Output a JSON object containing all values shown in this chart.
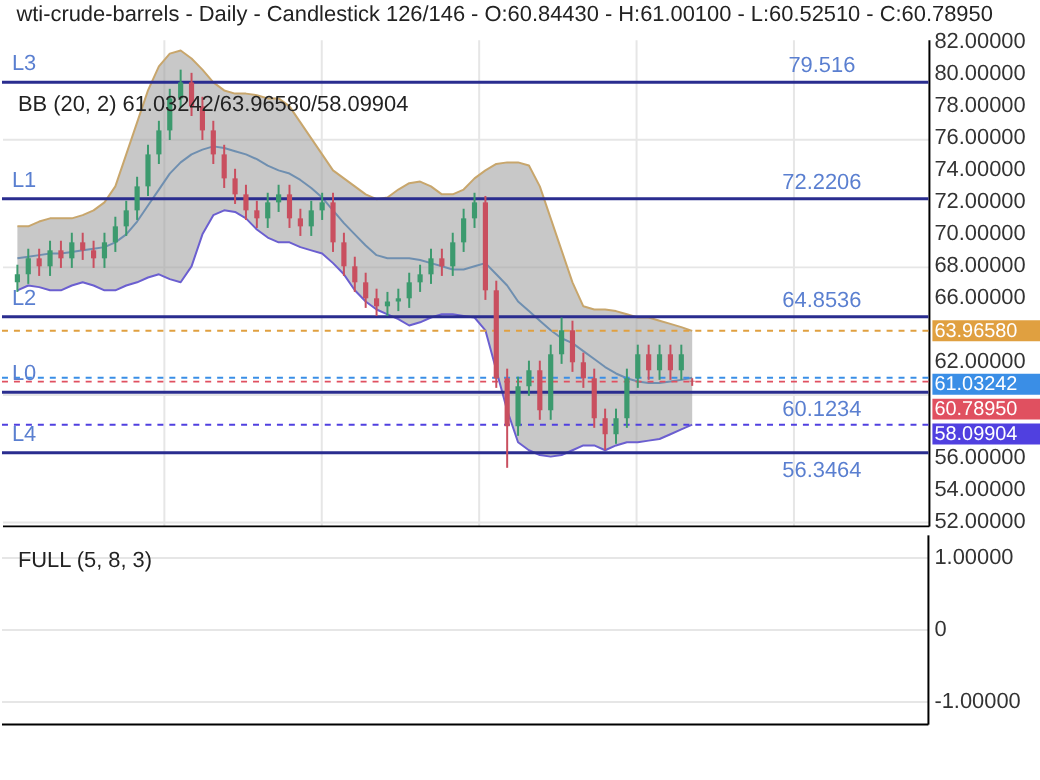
{
  "chart_data": [
    {
      "type": "candlestick",
      "title": "wti-crude-barrels - Daily - Candlestick    126/146 - O:60.84430 - H:61.00100 - L:60.52510 - C:60.78950",
      "subtitle": "BB (20, 2)   61.03242/63.96580/58.09904",
      "categories": [
        null,
        null,
        null,
        null,
        null,
        null,
        null,
        null,
        null,
        null,
        null,
        null,
        null,
        null,
        null,
        null,
        null,
        null,
        null,
        null,
        null,
        null,
        null,
        null,
        null,
        null,
        null,
        null,
        null,
        null,
        null,
        null,
        null,
        null,
        null,
        null,
        null,
        null,
        null,
        null,
        null,
        null,
        null,
        null,
        null,
        null,
        null,
        null,
        null,
        null,
        null,
        null,
        null,
        null,
        null,
        null,
        null,
        null,
        null,
        null,
        null,
        null,
        null
      ],
      "ohlc": [
        [
          67.0,
          68.1,
          66.4,
          67.5
        ],
        [
          67.5,
          69.1,
          66.9,
          68.5
        ],
        [
          68.5,
          69.1,
          67.4,
          68.0
        ],
        [
          68.0,
          69.6,
          67.4,
          69.0
        ],
        [
          69.0,
          69.6,
          67.9,
          68.5
        ],
        [
          68.5,
          70.1,
          67.9,
          69.5
        ],
        [
          69.5,
          70.1,
          68.4,
          69.0
        ],
        [
          69.0,
          69.6,
          67.9,
          68.5
        ],
        [
          68.5,
          70.1,
          67.9,
          69.5
        ],
        [
          69.5,
          71.1,
          68.9,
          70.5
        ],
        [
          70.5,
          72.1,
          69.9,
          71.5
        ],
        [
          71.5,
          73.6,
          70.9,
          73.0
        ],
        [
          73.0,
          75.6,
          72.4,
          75.0
        ],
        [
          75.0,
          77.1,
          74.4,
          76.5
        ],
        [
          76.5,
          79.1,
          75.9,
          78.5
        ],
        [
          78.5,
          80.3,
          77.9,
          79.5
        ],
        [
          79.5,
          80.1,
          77.4,
          78.0
        ],
        [
          78.0,
          78.6,
          75.9,
          76.5
        ],
        [
          76.5,
          77.1,
          74.4,
          75.0
        ],
        [
          75.0,
          75.6,
          72.9,
          73.5
        ],
        [
          73.5,
          74.1,
          71.9,
          72.5
        ],
        [
          72.5,
          73.1,
          70.9,
          71.5
        ],
        [
          71.5,
          72.1,
          70.4,
          71.0
        ],
        [
          71.0,
          72.6,
          70.4,
          72.0
        ],
        [
          72.0,
          73.1,
          71.4,
          72.5
        ],
        [
          72.5,
          73.1,
          70.4,
          71.0
        ],
        [
          71.0,
          71.6,
          69.9,
          70.5
        ],
        [
          70.5,
          72.1,
          69.9,
          71.5
        ],
        [
          71.5,
          72.6,
          70.9,
          72.0
        ],
        [
          72.0,
          72.6,
          68.9,
          69.5
        ],
        [
          69.5,
          70.1,
          67.4,
          68.0
        ],
        [
          68.0,
          68.6,
          66.4,
          67.0
        ],
        [
          67.0,
          67.6,
          65.4,
          66.0
        ],
        [
          66.0,
          66.6,
          64.9,
          65.5
        ],
        [
          65.5,
          66.4,
          64.9,
          65.8
        ],
        [
          65.8,
          66.6,
          65.2,
          66.0
        ],
        [
          66.0,
          67.6,
          65.4,
          67.0
        ],
        [
          67.0,
          68.1,
          66.4,
          67.5
        ],
        [
          67.5,
          69.1,
          66.9,
          68.5
        ],
        [
          68.5,
          69.1,
          67.4,
          68.0
        ],
        [
          68.0,
          70.1,
          67.4,
          69.5
        ],
        [
          69.5,
          71.6,
          68.9,
          71.0
        ],
        [
          71.0,
          72.6,
          70.4,
          72.0
        ],
        [
          72.0,
          72.4,
          65.9,
          66.5
        ],
        [
          66.5,
          67.1,
          60.4,
          61.0
        ],
        [
          61.0,
          61.6,
          55.4,
          58.0
        ],
        [
          58.0,
          61.1,
          57.4,
          60.5
        ],
        [
          60.5,
          62.1,
          59.9,
          61.5
        ],
        [
          61.5,
          62.1,
          58.4,
          59.0
        ],
        [
          59.0,
          63.1,
          58.4,
          62.5
        ],
        [
          62.5,
          64.8,
          61.9,
          64.0
        ],
        [
          64.0,
          64.6,
          61.4,
          62.0
        ],
        [
          62.0,
          62.6,
          60.4,
          61.0
        ],
        [
          61.0,
          61.6,
          57.9,
          58.5
        ],
        [
          58.5,
          59.1,
          56.5,
          57.5
        ],
        [
          57.5,
          59.1,
          56.9,
          58.5
        ],
        [
          58.5,
          61.6,
          57.9,
          61.0
        ],
        [
          61.0,
          63.1,
          60.4,
          62.5
        ],
        [
          62.5,
          63.1,
          60.9,
          61.5
        ],
        [
          61.5,
          63.1,
          60.9,
          62.5
        ],
        [
          62.5,
          63.1,
          60.9,
          61.5
        ],
        [
          61.5,
          63.1,
          60.9,
          62.5
        ],
        [
          60.8443,
          61.001,
          60.5251,
          60.7895
        ]
      ],
      "colors": [
        "#3c9a6e",
        "#3c9a6e",
        "#c94f5f",
        "#3c9a6e",
        "#c94f5f",
        "#3c9a6e",
        "#c94f5f",
        "#c94f5f",
        "#3c9a6e",
        "#3c9a6e",
        "#3c9a6e",
        "#3c9a6e",
        "#3c9a6e",
        "#3c9a6e",
        "#3c9a6e",
        "#3c9a6e",
        "#c94f5f",
        "#c94f5f",
        "#c94f5f",
        "#c94f5f",
        "#c94f5f",
        "#c94f5f",
        "#c94f5f",
        "#3c9a6e",
        "#3c9a6e",
        "#c94f5f",
        "#c94f5f",
        "#3c9a6e",
        "#3c9a6e",
        "#c94f5f",
        "#c94f5f",
        "#c94f5f",
        "#c94f5f",
        "#c94f5f",
        "#3c9a6e",
        "#3c9a6e",
        "#3c9a6e",
        "#3c9a6e",
        "#3c9a6e",
        "#c94f5f",
        "#3c9a6e",
        "#3c9a6e",
        "#3c9a6e",
        "#c94f5f",
        "#c94f5f",
        "#c94f5f",
        "#3c9a6e",
        "#3c9a6e",
        "#c94f5f",
        "#3c9a6e",
        "#3c9a6e",
        "#c94f5f",
        "#c94f5f",
        "#c94f5f",
        "#c94f5f",
        "#3c9a6e",
        "#3c9a6e",
        "#3c9a6e",
        "#c94f5f",
        "#3c9a6e",
        "#c94f5f",
        "#3c9a6e",
        "#c94f5f"
      ],
      "series": [
        {
          "type": "line",
          "color": "#c8a66c",
          "values": [
            70.5,
            70.5,
            70.8,
            71,
            71,
            71,
            71.2,
            71.5,
            72,
            73,
            75,
            77,
            79,
            80.5,
            81.3,
            81.5,
            81,
            80.3,
            79.5,
            79,
            78.8,
            78.8,
            78.7,
            78.5,
            78.5,
            78,
            77,
            76,
            75,
            74,
            73.5,
            73,
            72.5,
            72.2,
            72.3,
            72.8,
            73.2,
            73.3,
            73,
            72.5,
            72.5,
            72.8,
            73.5,
            74,
            74.4,
            74.5,
            74.5,
            74.3,
            73,
            71,
            69,
            67,
            65.5,
            65.3,
            65.3,
            65.2,
            65,
            64.8,
            64.8,
            64.6,
            64.4,
            64.2,
            63.9658
          ]
        },
        {
          "type": "line",
          "color": "#6f8fb0",
          "upper": [
            70.5,
            70.5,
            70.8,
            71,
            71,
            71,
            71.2,
            71.5,
            72,
            73,
            75,
            77,
            79,
            80.5,
            81.3,
            81.5,
            81,
            80.3,
            79.5,
            79,
            78.8,
            78.8,
            78.7,
            78.5,
            78.5,
            78,
            77,
            76,
            75,
            74,
            73.5,
            73,
            72.5,
            72.2,
            72.3,
            72.8,
            73.2,
            73.3,
            73,
            72.5,
            72.5,
            72.8,
            73.5,
            74,
            74.4,
            74.5,
            74.5,
            74.3,
            73,
            71,
            69,
            67,
            65.5,
            65.3,
            65.3,
            65.2,
            65,
            64.8,
            64.8,
            64.6,
            64.4,
            64.2,
            63.9658
          ],
          "lower": [
            66.5,
            66.8,
            66.7,
            66.5,
            66.5,
            66.8,
            67,
            66.8,
            66.5,
            66.5,
            66.8,
            67,
            67.3,
            67.5,
            67.2,
            67,
            68,
            70,
            71.2,
            71.5,
            71.4,
            71,
            70.3,
            69.8,
            69.5,
            69.5,
            69.2,
            69,
            68.8,
            68.2,
            67.5,
            66.5,
            65.8,
            65.3,
            65,
            64.7,
            64.3,
            64.5,
            64.8,
            65,
            65,
            64.9,
            64.8,
            64,
            61.5,
            59,
            57,
            56.5,
            56.2,
            56.1,
            56.2,
            56.5,
            56.8,
            56.8,
            56.5,
            56.8,
            57,
            57,
            57.1,
            57.2,
            57.5,
            57.8,
            58.09904
          ],
          "values": [
            68.5,
            68.6,
            68.7,
            68.8,
            68.8,
            68.9,
            69,
            69.1,
            69.2,
            69.5,
            70,
            70.8,
            71.8,
            72.8,
            73.8,
            74.5,
            75,
            75.3,
            75.5,
            75.4,
            75.2,
            75,
            74.7,
            74.3,
            74,
            73.8,
            73.4,
            72.9,
            72.3,
            71.5,
            70.7,
            70,
            69.3,
            68.7,
            68.5,
            68.5,
            68.5,
            68.4,
            68.2,
            68,
            67.8,
            67.8,
            68,
            68.2,
            67.5,
            66.8,
            65.8,
            65.2,
            64.6,
            64,
            63.5,
            63.2,
            62.7,
            62.2,
            61.7,
            61.3,
            61,
            60.8,
            60.7,
            60.7,
            60.8,
            60.9,
            61.03242
          ]
        },
        {
          "type": "line",
          "color": "#6b5fd0",
          "values": [
            66.5,
            66.8,
            66.7,
            66.5,
            66.5,
            66.8,
            67,
            66.8,
            66.5,
            66.5,
            66.8,
            67,
            67.3,
            67.5,
            67.2,
            67,
            68,
            70,
            71.2,
            71.5,
            71.4,
            71,
            70.3,
            69.8,
            69.5,
            69.5,
            69.2,
            69,
            68.8,
            68.2,
            67.5,
            66.5,
            65.8,
            65.3,
            65,
            64.7,
            64.3,
            64.5,
            64.8,
            65,
            65,
            64.9,
            64.8,
            64,
            61.5,
            59,
            57,
            56.5,
            56.2,
            56.1,
            56.2,
            56.5,
            56.8,
            56.8,
            56.5,
            56.8,
            57,
            57,
            57.1,
            57.2,
            57.5,
            57.8,
            58.09904
          ]
        }
      ],
      "ylim": [
        51.8,
        82.2
      ],
      "yticks": [
        {
          "value": 52,
          "label": "52.00000"
        },
        {
          "value": 54,
          "label": "54.00000"
        },
        {
          "value": 56,
          "label": "56.00000"
        },
        {
          "value": 58,
          "label": null
        },
        {
          "value": 60,
          "label": null
        },
        {
          "value": 62,
          "label": "62.00000"
        },
        {
          "value": 64,
          "label": null
        },
        {
          "value": 66,
          "label": "66.00000"
        },
        {
          "value": 68,
          "label": "68.00000"
        },
        {
          "value": 70,
          "label": "70.00000"
        },
        {
          "value": 72,
          "label": "72.00000"
        },
        {
          "value": 74,
          "label": "74.00000"
        },
        {
          "value": 76,
          "label": "76.00000"
        },
        {
          "value": 78,
          "label": "78.00000"
        },
        {
          "value": 80,
          "label": "80.00000"
        },
        {
          "value": 82,
          "label": "82.00000"
        }
      ],
      "ref_lines": [
        {
          "axis": "y",
          "value": 79.516,
          "label": "79.516",
          "color": "#2a2d8f",
          "line_style": "solid"
        },
        {
          "axis": "y",
          "value": 72.2206,
          "label": "72.2206",
          "color": "#2a2d8f",
          "line_style": "solid"
        },
        {
          "axis": "y",
          "value": 64.8536,
          "label": "64.8536",
          "color": "#2a2d8f",
          "line_style": "solid"
        },
        {
          "axis": "y",
          "value": 60.1234,
          "label": "60.1234",
          "color": "#2a2d8f",
          "line_style": "solid"
        },
        {
          "axis": "y",
          "value": 56.3464,
          "label": "56.3464",
          "color": "#2a2d8f",
          "line_style": "solid"
        },
        {
          "axis": "y",
          "value": 63.9658,
          "label": "63.96580",
          "color": "#e0a040",
          "line_style": "dashed"
        },
        {
          "axis": "y",
          "value": 61.03242,
          "label": "61.03242",
          "color": "#3a8ee6",
          "line_style": "dashed"
        },
        {
          "axis": "y",
          "value": 60.7895,
          "label": "60.78950",
          "color": "#e05060",
          "line_style": "dashed"
        },
        {
          "axis": "y",
          "value": 58.09904,
          "label": "58.09904",
          "color": "#5040e0",
          "line_style": "dashed"
        }
      ],
      "annotations": [
        {
          "text": "L3",
          "y": 79.516
        },
        {
          "text": "L1",
          "y": 72.2206
        },
        {
          "text": "L2",
          "y": 64.8536
        },
        {
          "text": "L0",
          "y": 60.1234
        },
        {
          "text": "L4",
          "y": 56.3464
        }
      ],
      "grid": true,
      "tick_labels": "y"
    },
    {
      "type": "other",
      "title": "FULL (5, 8, 3)",
      "annotations": [
        "1.00000",
        "0",
        "-1.00000"
      ]
    }
  ]
}
